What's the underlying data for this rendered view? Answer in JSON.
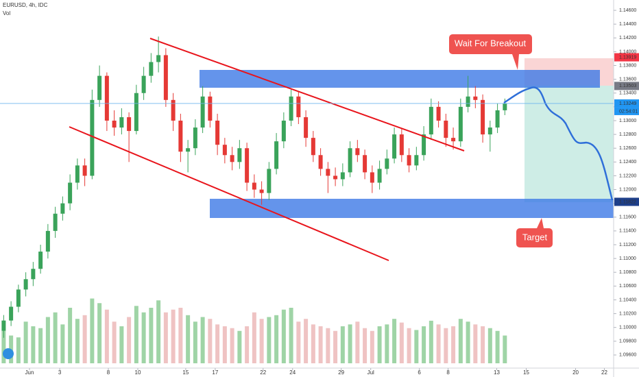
{
  "chart_data": {
    "type": "candlestick",
    "title": "EURUSD, 4h, IDC",
    "volume_title": "Vol",
    "x": [
      0.25,
      0.75,
      1.25,
      1.75,
      2.25,
      2.75,
      3.25,
      3.75,
      4.25,
      4.75,
      5.25,
      5.75,
      6.25,
      6.75,
      7.25,
      7.75,
      8.25,
      8.75,
      9.25,
      9.75,
      10.25,
      10.75,
      11.25,
      11.75,
      12.25,
      12.75,
      13.25,
      13.75,
      14.25,
      14.75,
      15.25,
      15.75,
      16.25,
      16.75,
      17.25,
      17.75,
      18.25,
      18.75,
      19.25,
      19.75,
      20.25,
      20.75,
      21.25,
      21.75,
      22.25,
      22.75,
      23.25,
      23.75,
      24.25,
      24.75,
      25.25,
      25.75,
      26.25,
      26.75,
      27.25,
      27.75,
      28.25,
      28.75,
      29.25,
      29.75,
      30.25,
      30.75,
      31.25,
      31.75,
      32.25,
      32.75,
      33.25,
      33.75,
      34.25
    ],
    "open": [
      1.0995,
      1.101,
      1.103,
      1.1055,
      1.107,
      1.1085,
      1.111,
      1.114,
      1.1165,
      1.118,
      1.121,
      1.1235,
      1.122,
      1.133,
      1.1365,
      1.13,
      1.129,
      1.1305,
      1.1285,
      1.134,
      1.1365,
      1.1385,
      1.1395,
      1.133,
      1.13,
      1.1255,
      1.126,
      1.129,
      1.1335,
      1.13,
      1.1265,
      1.125,
      1.124,
      1.126,
      1.121,
      1.12,
      1.1195,
      1.123,
      1.127,
      1.13,
      1.1335,
      1.1305,
      1.1275,
      1.125,
      1.123,
      1.122,
      1.1215,
      1.1225,
      1.126,
      1.125,
      1.1225,
      1.121,
      1.123,
      1.1245,
      1.128,
      1.125,
      1.1235,
      1.125,
      1.128,
      1.132,
      1.13,
      1.1275,
      1.127,
      1.132,
      1.1335,
      1.133,
      1.128,
      1.129,
      1.1315
    ],
    "high": [
      1.1018,
      1.1038,
      1.1062,
      1.108,
      1.1095,
      1.112,
      1.115,
      1.1175,
      1.119,
      1.1222,
      1.1245,
      1.1245,
      1.1345,
      1.138,
      1.137,
      1.1315,
      1.1318,
      1.1312,
      1.1352,
      1.1378,
      1.1398,
      1.1422,
      1.1405,
      1.134,
      1.131,
      1.1272,
      1.1302,
      1.135,
      1.1342,
      1.131,
      1.1275,
      1.1262,
      1.1272,
      1.1268,
      1.1222,
      1.1212,
      1.124,
      1.1282,
      1.1312,
      1.1345,
      1.1342,
      1.1315,
      1.1285,
      1.126,
      1.124,
      1.1232,
      1.1238,
      1.127,
      1.1272,
      1.1258,
      1.1235,
      1.1242,
      1.1258,
      1.129,
      1.1288,
      1.126,
      1.1262,
      1.1292,
      1.1332,
      1.1328,
      1.131,
      1.129,
      1.1332,
      1.1365,
      1.135,
      1.1338,
      1.13,
      1.1325,
      1.1332
    ],
    "low": [
      1.0985,
      1.1002,
      1.1022,
      1.1045,
      1.106,
      1.1078,
      1.11,
      1.113,
      1.1155,
      1.117,
      1.12,
      1.1205,
      1.1215,
      1.132,
      1.1285,
      1.1278,
      1.128,
      1.124,
      1.128,
      1.133,
      1.1355,
      1.137,
      1.132,
      1.1285,
      1.124,
      1.1225,
      1.125,
      1.1282,
      1.129,
      1.125,
      1.1238,
      1.1228,
      1.123,
      1.1198,
      1.1188,
      1.1178,
      1.1185,
      1.1222,
      1.126,
      1.1292,
      1.1295,
      1.1262,
      1.124,
      1.122,
      1.1195,
      1.1205,
      1.1205,
      1.1218,
      1.124,
      1.1215,
      1.1195,
      1.12,
      1.1222,
      1.1238,
      1.124,
      1.1225,
      1.1228,
      1.1242,
      1.1272,
      1.129,
      1.1262,
      1.1258,
      1.1262,
      1.1312,
      1.1318,
      1.1268,
      1.1255,
      1.1282,
      1.1308
    ],
    "close": [
      1.101,
      1.103,
      1.1055,
      1.107,
      1.1085,
      1.111,
      1.114,
      1.1165,
      1.118,
      1.121,
      1.1235,
      1.122,
      1.133,
      1.1365,
      1.13,
      1.129,
      1.1305,
      1.1285,
      1.134,
      1.1365,
      1.1385,
      1.1395,
      1.133,
      1.13,
      1.1255,
      1.126,
      1.129,
      1.1335,
      1.13,
      1.1265,
      1.125,
      1.124,
      1.126,
      1.121,
      1.12,
      1.1195,
      1.123,
      1.127,
      1.13,
      1.1335,
      1.1305,
      1.1275,
      1.125,
      1.123,
      1.122,
      1.1215,
      1.1225,
      1.126,
      1.125,
      1.1225,
      1.121,
      1.123,
      1.1245,
      1.128,
      1.125,
      1.1235,
      1.125,
      1.128,
      1.132,
      1.13,
      1.1275,
      1.127,
      1.132,
      1.1335,
      1.133,
      1.128,
      1.129,
      1.1315,
      1.1325
    ],
    "volume": [
      35,
      30,
      28,
      45,
      40,
      38,
      50,
      55,
      42,
      60,
      48,
      52,
      70,
      65,
      58,
      45,
      40,
      50,
      62,
      55,
      60,
      68,
      55,
      58,
      60,
      52,
      45,
      50,
      48,
      42,
      40,
      38,
      35,
      40,
      55,
      48,
      50,
      52,
      58,
      60,
      45,
      48,
      42,
      40,
      38,
      35,
      40,
      42,
      45,
      38,
      35,
      40,
      42,
      48,
      44,
      38,
      36,
      40,
      46,
      42,
      38,
      40,
      48,
      45,
      42,
      40,
      38,
      35,
      30
    ],
    "up_color": "#3aa35a",
    "down_color": "#e53935",
    "volume_up_color": "#9fd4a6",
    "volume_down_color": "#efc3c3",
    "volume_ylim": [
      0,
      100
    ],
    "xlim": [
      0,
      41.63
    ],
    "xticks": [
      {
        "value": 2,
        "label": "Jun"
      },
      {
        "value": 4.05,
        "label": "3"
      },
      {
        "value": 7.35,
        "label": "8"
      },
      {
        "value": 9.35,
        "label": "10"
      },
      {
        "value": 12.6,
        "label": "15"
      },
      {
        "value": 14.6,
        "label": "17"
      },
      {
        "value": 17.85,
        "label": "22"
      },
      {
        "value": 19.85,
        "label": "24"
      },
      {
        "value": 23.15,
        "label": "29"
      },
      {
        "value": 25.15,
        "label": "Jul"
      },
      {
        "value": 28.45,
        "label": "6"
      },
      {
        "value": 30.4,
        "label": "8"
      },
      {
        "value": 33.7,
        "label": "13"
      },
      {
        "value": 35.7,
        "label": "15"
      },
      {
        "value": 39.05,
        "label": "20"
      },
      {
        "value": 41.0,
        "label": "22"
      }
    ],
    "ylim": [
      1.0943,
      1.1475
    ],
    "yticks": [
      {
        "value": 1.096,
        "label": "1.09600"
      },
      {
        "value": 1.098,
        "label": "1.09800"
      },
      {
        "value": 1.1,
        "label": "1.10000"
      },
      {
        "value": 1.102,
        "label": "1.10200"
      },
      {
        "value": 1.104,
        "label": "1.10400"
      },
      {
        "value": 1.106,
        "label": "1.10600"
      },
      {
        "value": 1.108,
        "label": "1.10800"
      },
      {
        "value": 1.11,
        "label": "1.11000"
      },
      {
        "value": 1.112,
        "label": "1.11200"
      },
      {
        "value": 1.114,
        "label": "1.11400"
      },
      {
        "value": 1.116,
        "label": "1.11600"
      },
      {
        "value": 1.118,
        "label": "1.11800"
      },
      {
        "value": 1.12,
        "label": "1.12000"
      },
      {
        "value": 1.122,
        "label": "1.12200"
      },
      {
        "value": 1.124,
        "label": "1.12400"
      },
      {
        "value": 1.126,
        "label": "1.12600"
      },
      {
        "value": 1.128,
        "label": "1.12800"
      },
      {
        "value": 1.13,
        "label": "1.13000"
      },
      {
        "value": 1.132,
        "label": "1.13200"
      },
      {
        "value": 1.134,
        "label": "1.13400"
      },
      {
        "value": 1.136,
        "label": "1.13600"
      },
      {
        "value": 1.138,
        "label": "1.13800"
      },
      {
        "value": 1.14,
        "label": "1.14000"
      },
      {
        "value": 1.142,
        "label": "1.14200"
      },
      {
        "value": 1.144,
        "label": "1.14400"
      },
      {
        "value": 1.146,
        "label": "1.14600"
      }
    ],
    "price_tags": [
      {
        "value": 1.13919,
        "color": "#f23645"
      },
      {
        "value": 1.13503,
        "color": "#787b86"
      },
      {
        "value": 1.13249,
        "color": "#2196f3"
      },
      {
        "value": 1.11822,
        "color": "#1e3f8a"
      }
    ],
    "countdown": "02:54:01",
    "annotations": [
      "Wait For Breakout",
      "Target"
    ]
  }
}
